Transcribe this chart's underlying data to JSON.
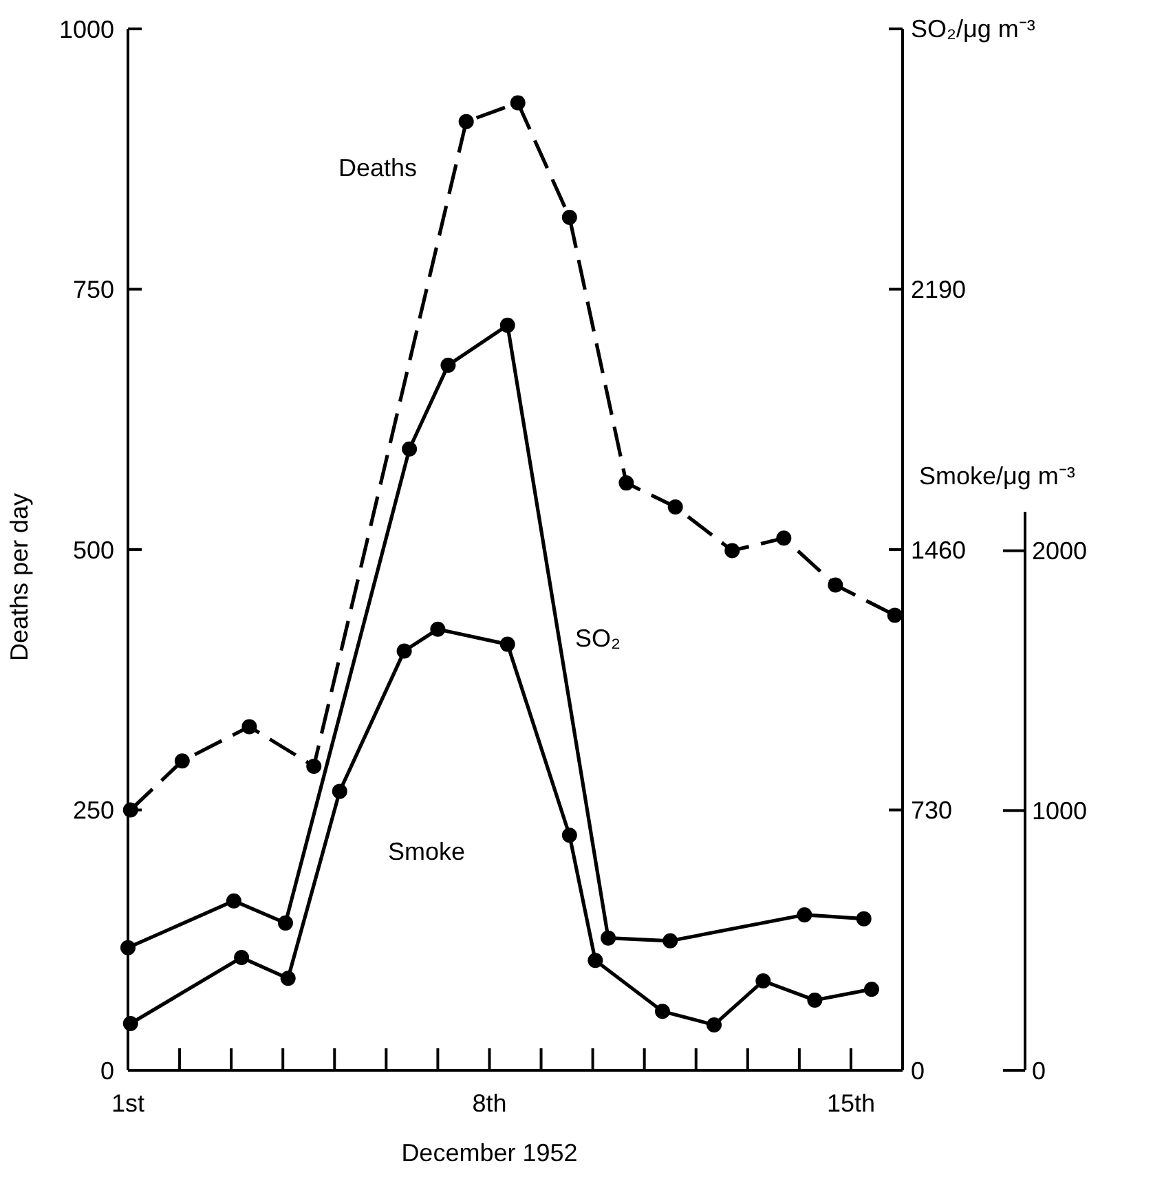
{
  "chart_data": {
    "type": "line",
    "xlabel": "December 1952",
    "ylabel": "Deaths per day",
    "y2label": "SO₂/μg m⁻³",
    "y3label": "Smoke/μg m⁻³",
    "xlim": [
      1,
      16
    ],
    "xticks": [
      {
        "value": 1,
        "label": "1st"
      },
      {
        "value": 2,
        "label": null
      },
      {
        "value": 3,
        "label": null
      },
      {
        "value": 4,
        "label": null
      },
      {
        "value": 5,
        "label": null
      },
      {
        "value": 6,
        "label": null
      },
      {
        "value": 7,
        "label": null
      },
      {
        "value": 8,
        "label": "8th"
      },
      {
        "value": 9,
        "label": null
      },
      {
        "value": 10,
        "label": null
      },
      {
        "value": 11,
        "label": null
      },
      {
        "value": 12,
        "label": null
      },
      {
        "value": 13,
        "label": null
      },
      {
        "value": 14,
        "label": null
      },
      {
        "value": 15,
        "label": "15th"
      }
    ],
    "ylim": [
      0,
      1000
    ],
    "yticks": [
      0,
      250,
      500,
      750,
      1000
    ],
    "y2lim": [
      0,
      2920
    ],
    "y2ticks": [
      0,
      730,
      1460,
      2190,
      {
        "value": 2920,
        "label": null
      }
    ],
    "y3lim": [
      0,
      2150
    ],
    "y3ticks": [
      0,
      1000,
      2000
    ],
    "marker": "circle",
    "series": [
      {
        "name": "Deaths",
        "color": "#000000",
        "line_style": "dashed",
        "x": [
          1.05,
          2.05,
          3.35,
          4.6,
          7.55,
          8.55,
          9.55,
          10.65,
          11.6,
          12.7,
          13.7,
          14.7,
          15.85
        ],
        "values": [
          250,
          297,
          330,
          292,
          911,
          929,
          819,
          564,
          541,
          499,
          511,
          466,
          437
        ]
      },
      {
        "name": "SO₂",
        "color": "#000000",
        "line_style": "solid",
        "axis": "y2",
        "x": [
          1.0,
          3.05,
          4.05,
          6.45,
          7.2,
          8.35,
          10.3,
          11.5,
          14.1,
          15.25
        ],
        "values": [
          344,
          475,
          413,
          1742,
          1977,
          2089,
          371,
          363,
          436,
          425
        ]
      },
      {
        "name": "Smoke",
        "color": "#000000",
        "line_style": "solid",
        "axis": "y3",
        "x": [
          1.05,
          3.2,
          4.1,
          5.1,
          6.35,
          7.0,
          8.35,
          9.55,
          10.05,
          11.35,
          12.35,
          13.3,
          14.3,
          15.4
        ],
        "values": [
          180,
          434,
          354,
          1074,
          1614,
          1698,
          1640,
          905,
          423,
          227,
          175,
          344,
          270,
          312
        ]
      }
    ]
  }
}
